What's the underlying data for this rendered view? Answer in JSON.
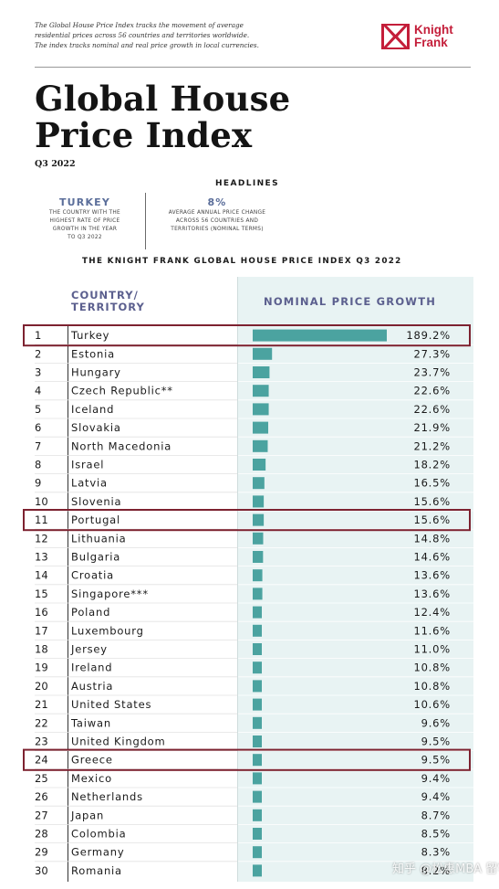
{
  "intro": [
    "The Global House Price Index tracks the movement of average",
    "residential prices across 56 countries and territories worldwide.",
    "The index tracks nominal and real price growth in local currencies."
  ],
  "brand": {
    "line1": "Knight",
    "line2": "Frank",
    "color": "#c41e3a"
  },
  "title": {
    "line1": "Global House",
    "line2": "Price Index"
  },
  "period": "Q3 2022",
  "headlines": {
    "label": "HEADLINES",
    "left": {
      "big": "TURKEY",
      "small": [
        "THE COUNTRY WITH THE",
        "HIGHEST RATE OF PRICE",
        "GROWTH IN THE YEAR",
        "TO Q3 2022"
      ]
    },
    "right": {
      "big": "8%",
      "small": [
        "AVERAGE ANNUAL PRICE CHANGE",
        "ACROSS 56 COUNTRIES AND",
        "TERRITORIES (NOMINAL TERMS)"
      ]
    }
  },
  "watermark": "知乎 @松惠MBA 留学",
  "colors": {
    "bar": "#4ba3a0",
    "panel": "#e8f3f3",
    "highlight": "#7d2230",
    "header": "#5b5f8e"
  },
  "chart_data": {
    "type": "bar",
    "title": "THE KNIGHT FRANK GLOBAL HOUSE PRICE INDEX Q3 2022",
    "col_label": [
      "COUNTRY/",
      "TERRITORY"
    ],
    "value_label": "NOMINAL PRICE GROWTH",
    "ranks": [
      "1",
      "2",
      "3",
      "4",
      "5",
      "6",
      "7",
      "8",
      "9",
      "10",
      "11",
      "12",
      "13",
      "14",
      "15",
      "16",
      "17",
      "18",
      "19",
      "20",
      "21",
      "22",
      "23",
      "24",
      "25",
      "26",
      "27",
      "28",
      "29",
      "30"
    ],
    "categories": [
      "Turkey",
      "Estonia",
      "Hungary",
      "Czech Republic**",
      "Iceland",
      "Slovakia",
      "North Macedonia",
      "Israel",
      "Latvia",
      "Slovenia",
      "Portugal",
      "Lithuania",
      "Bulgaria",
      "Croatia",
      "Singapore***",
      "Poland",
      "Luxembourg",
      "Jersey",
      "Ireland",
      "Austria",
      "United States",
      "Taiwan",
      "United Kingdom",
      "Greece",
      "Mexico",
      "Netherlands",
      "Japan",
      "Colombia",
      "Germany",
      "Romania"
    ],
    "values": [
      189.2,
      27.3,
      23.7,
      22.6,
      22.6,
      21.9,
      21.2,
      18.2,
      16.5,
      15.6,
      15.6,
      14.8,
      14.6,
      13.6,
      13.6,
      12.4,
      11.6,
      11.0,
      10.8,
      10.8,
      10.6,
      9.6,
      9.5,
      9.5,
      9.4,
      9.4,
      8.7,
      8.5,
      8.3,
      8.2
    ],
    "labels": [
      "189.2%",
      "27.3%",
      "23.7%",
      "22.6%",
      "22.6%",
      "21.9%",
      "21.2%",
      "18.2%",
      "16.5%",
      "15.6%",
      "15.6%",
      "14.8%",
      "14.6%",
      "13.6%",
      "13.6%",
      "12.4%",
      "11.6%",
      "11.0%",
      "10.8%",
      "10.8%",
      "10.6%",
      "9.6%",
      "9.5%",
      "9.5%",
      "9.4%",
      "9.4%",
      "8.7%",
      "8.5%",
      "8.3%",
      "8.2%"
    ],
    "highlighted": [
      "Turkey",
      "Portugal",
      "Greece"
    ],
    "unit": "%"
  }
}
